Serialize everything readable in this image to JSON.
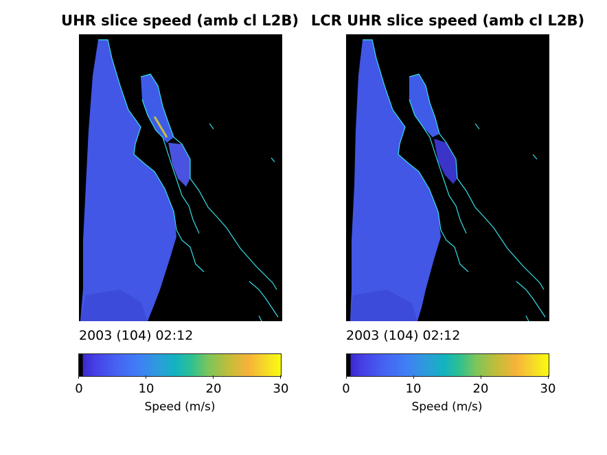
{
  "chart_data": [
    {
      "type": "heatmap",
      "title": "UHR slice speed (amb cl L2B)",
      "timestamp": "2003 (104) 02:12",
      "colorbar": {
        "label": "Speed (m/s)",
        "range": [
          0,
          30
        ],
        "ticks": [
          "0",
          "10",
          "20",
          "30"
        ],
        "colormap": "parula"
      },
      "ocean_speed_typical": 5
    },
    {
      "type": "heatmap",
      "title": "LCR UHR slice speed (amb cl L2B)",
      "timestamp": "2003 (104) 02:12",
      "colorbar": {
        "label": "Speed (m/s)",
        "range": [
          0,
          30
        ],
        "ticks": [
          "0",
          "10",
          "20",
          "30"
        ],
        "colormap": "parula"
      },
      "ocean_speed_typical": 4
    }
  ],
  "colors": {
    "land": "#000000",
    "coastline": "#35e0e8",
    "ocean_swath": "#4257e6"
  }
}
